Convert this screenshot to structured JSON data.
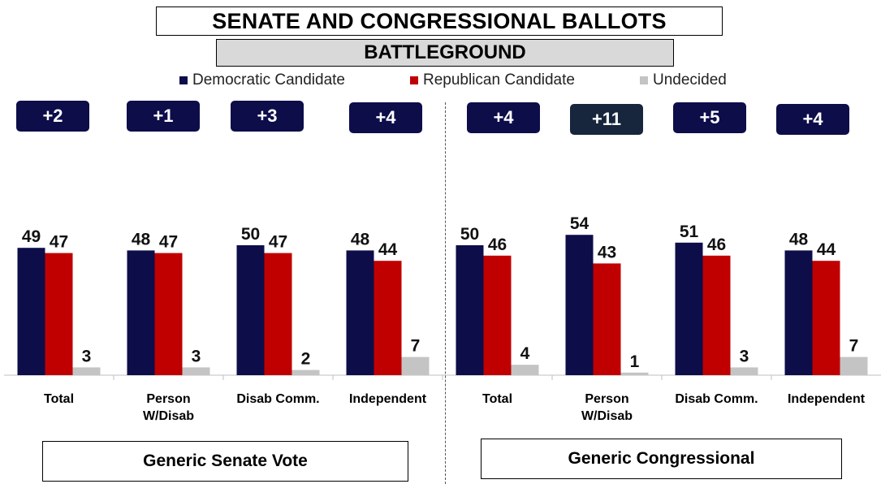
{
  "header": {
    "title": "SENATE AND CONGRESSIONAL BALLOTS",
    "subtitle": "BATTLEGROUND"
  },
  "legend": [
    {
      "label": "Democratic Candidate",
      "color": "#0d0d4a"
    },
    {
      "label": "Republican Candidate",
      "color": "#c00000"
    },
    {
      "label": "Undecided",
      "color": "#c4c4c4"
    }
  ],
  "sections": [
    {
      "label": "Generic Senate Vote"
    },
    {
      "label": "Generic Congressional"
    }
  ],
  "spreads": [
    {
      "label": "+2",
      "color": "#0d0d4a"
    },
    {
      "label": "+1",
      "color": "#0d0d4a"
    },
    {
      "label": "+3",
      "color": "#0d0d4a"
    },
    {
      "label": "+4",
      "color": "#0d0d4a"
    },
    {
      "label": "+4",
      "color": "#0d0d4a"
    },
    {
      "label": "+11",
      "color": "#17253d"
    },
    {
      "label": "+5",
      "color": "#0d0d4a"
    },
    {
      "label": "+4",
      "color": "#0d0d4a"
    }
  ],
  "chart_data": {
    "type": "bar",
    "title": "SENATE AND CONGRESSIONAL BALLOTS",
    "subtitle": "BATTLEGROUND",
    "categories": [
      "Total",
      "Person W/Disab",
      "Disab Comm.",
      "Independent",
      "Total",
      "Person W/Disab",
      "Disab Comm.",
      "Independent"
    ],
    "category_lines": [
      [
        "Total"
      ],
      [
        "Person",
        "W/Disab"
      ],
      [
        "Disab Comm."
      ],
      [
        "Independent"
      ],
      [
        "Total"
      ],
      [
        "Person",
        "W/Disab"
      ],
      [
        "Disab Comm."
      ],
      [
        "Independent"
      ]
    ],
    "groups": [
      "Generic Senate Vote",
      "Generic Congressional"
    ],
    "series": [
      {
        "name": "Democratic Candidate",
        "color": "#0d0d4a",
        "values": [
          49,
          48,
          50,
          48,
          50,
          54,
          51,
          48
        ]
      },
      {
        "name": "Republican Candidate",
        "color": "#c00000",
        "values": [
          47,
          47,
          47,
          44,
          46,
          43,
          46,
          44
        ]
      },
      {
        "name": "Undecided",
        "color": "#c4c4c4",
        "values": [
          3,
          3,
          2,
          7,
          4,
          1,
          3,
          7
        ]
      }
    ],
    "ylim": [
      0,
      60
    ],
    "grid": false,
    "legend_position": "top"
  }
}
